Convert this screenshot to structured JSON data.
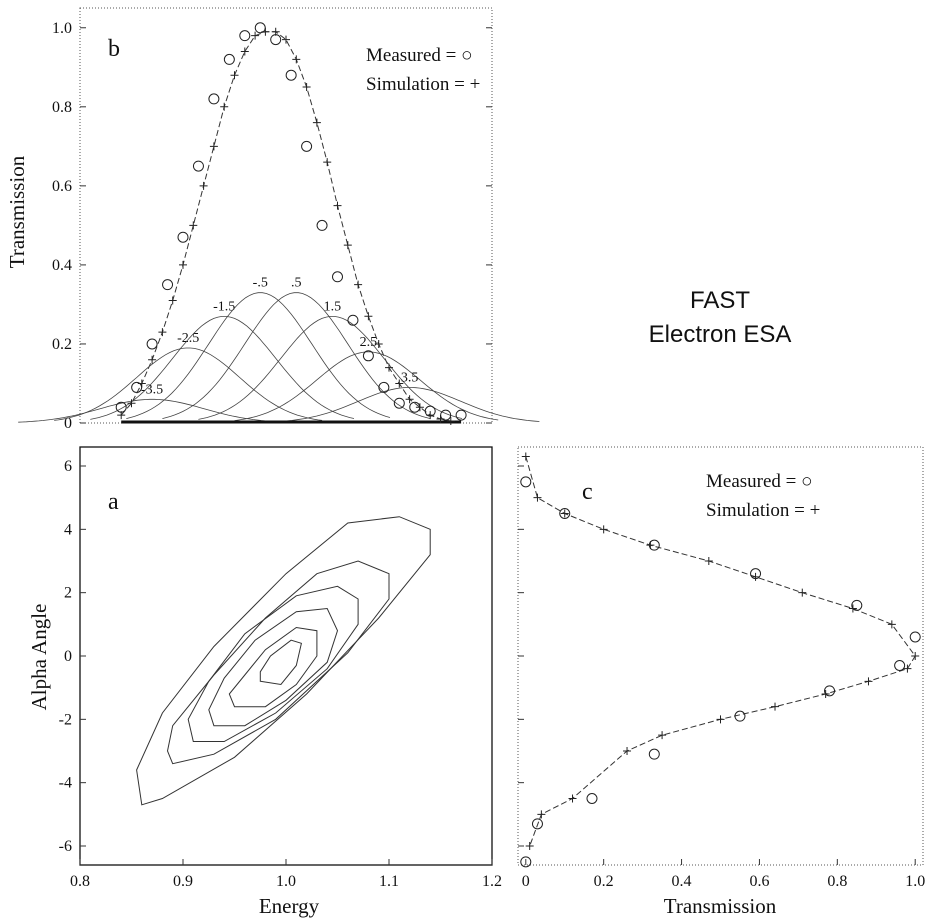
{
  "side_title": {
    "line1": "FAST",
    "line2": "Electron ESA"
  },
  "chart_data": [
    {
      "id": "b",
      "type": "line",
      "panel_label": "b",
      "xlabel": "",
      "ylabel": "Transmission",
      "xlim": [
        0.8,
        1.2
      ],
      "ylim": [
        0,
        1.05
      ],
      "yticks": [
        0,
        0.2,
        0.4,
        0.6,
        0.8,
        1.0
      ],
      "ytick_labels": [
        "0",
        "0.2",
        "0.4",
        "0.6",
        "0.8",
        "1.0"
      ],
      "legend": {
        "measured": "Measured  = ○",
        "simulation": "Simulation  =  +"
      },
      "series": [
        {
          "name": "Measured",
          "marker": "circle",
          "x": [
            0.84,
            0.855,
            0.87,
            0.885,
            0.9,
            0.915,
            0.93,
            0.945,
            0.96,
            0.975,
            0.99,
            1.005,
            1.02,
            1.035,
            1.05,
            1.065,
            1.08,
            1.095,
            1.11,
            1.125,
            1.14,
            1.155,
            1.17
          ],
          "y": [
            0.04,
            0.09,
            0.2,
            0.35,
            0.47,
            0.65,
            0.82,
            0.92,
            0.98,
            1.0,
            0.97,
            0.88,
            0.7,
            0.5,
            0.37,
            0.26,
            0.17,
            0.09,
            0.05,
            0.04,
            0.03,
            0.02,
            0.02
          ]
        },
        {
          "name": "Simulation",
          "marker": "plus",
          "x": [
            0.84,
            0.85,
            0.86,
            0.87,
            0.88,
            0.89,
            0.9,
            0.91,
            0.92,
            0.93,
            0.94,
            0.95,
            0.96,
            0.97,
            0.98,
            0.99,
            1.0,
            1.01,
            1.02,
            1.03,
            1.04,
            1.05,
            1.06,
            1.07,
            1.08,
            1.09,
            1.1,
            1.11,
            1.12,
            1.13,
            1.14,
            1.15,
            1.16
          ],
          "y": [
            0.02,
            0.05,
            0.1,
            0.16,
            0.23,
            0.31,
            0.4,
            0.5,
            0.6,
            0.7,
            0.8,
            0.88,
            0.94,
            0.98,
            0.99,
            0.99,
            0.97,
            0.92,
            0.85,
            0.76,
            0.66,
            0.55,
            0.45,
            0.35,
            0.27,
            0.2,
            0.14,
            0.1,
            0.06,
            0.04,
            0.02,
            0.01,
            0.005
          ]
        },
        {
          "name": "-3.5",
          "peak_x": 0.87,
          "peak_y": 0.06
        },
        {
          "name": "-2.5",
          "peak_x": 0.905,
          "peak_y": 0.19
        },
        {
          "name": "-1.5",
          "peak_x": 0.94,
          "peak_y": 0.27
        },
        {
          "name": "-.5",
          "peak_x": 0.975,
          "peak_y": 0.33
        },
        {
          "name": ".5",
          "peak_x": 1.01,
          "peak_y": 0.33
        },
        {
          "name": "1.5",
          "peak_x": 1.045,
          "peak_y": 0.27
        },
        {
          "name": "2.5",
          "peak_x": 1.08,
          "peak_y": 0.18
        },
        {
          "name": "3.5",
          "peak_x": 1.12,
          "peak_y": 0.09
        }
      ]
    },
    {
      "id": "a",
      "type": "line",
      "panel_label": "a",
      "xlabel": "Energy",
      "ylabel": "Alpha Angle",
      "xlim": [
        0.8,
        1.2
      ],
      "ylim": [
        -6.6,
        6.6
      ],
      "xticks": [
        0.8,
        0.9,
        1.0,
        1.1,
        1.2
      ],
      "xtick_labels": [
        "0.8",
        "0.9",
        "1.0",
        "1.1",
        "1.2"
      ],
      "yticks": [
        -6,
        -4,
        -2,
        0,
        2,
        4,
        6
      ],
      "ytick_labels": [
        "-6",
        "-4",
        "-2",
        "0",
        "2",
        "4",
        "6"
      ],
      "contours": [
        [
          [
            0.86,
            -4.7
          ],
          [
            0.88,
            -4.5
          ],
          [
            0.95,
            -3.2
          ],
          [
            1.02,
            -1.2
          ],
          [
            1.09,
            1.2
          ],
          [
            1.14,
            3.2
          ],
          [
            1.14,
            4.0
          ],
          [
            1.11,
            4.4
          ],
          [
            1.06,
            4.2
          ],
          [
            1.0,
            2.6
          ],
          [
            0.93,
            0.3
          ],
          [
            0.88,
            -1.8
          ],
          [
            0.855,
            -3.6
          ],
          [
            0.86,
            -4.7
          ]
        ],
        [
          [
            0.89,
            -3.4
          ],
          [
            0.93,
            -3.1
          ],
          [
            0.99,
            -2.0
          ],
          [
            1.06,
            0.1
          ],
          [
            1.1,
            1.8
          ],
          [
            1.1,
            2.6
          ],
          [
            1.07,
            3.0
          ],
          [
            1.03,
            2.6
          ],
          [
            0.98,
            1.2
          ],
          [
            0.93,
            -0.6
          ],
          [
            0.89,
            -2.2
          ],
          [
            0.885,
            -3.0
          ],
          [
            0.89,
            -3.4
          ]
        ],
        [
          [
            0.91,
            -2.7
          ],
          [
            0.94,
            -2.7
          ],
          [
            0.99,
            -1.8
          ],
          [
            1.04,
            -0.4
          ],
          [
            1.07,
            1.0
          ],
          [
            1.07,
            1.8
          ],
          [
            1.05,
            2.2
          ],
          [
            1.01,
            1.9
          ],
          [
            0.96,
            0.7
          ],
          [
            0.925,
            -0.8
          ],
          [
            0.905,
            -2.0
          ],
          [
            0.91,
            -2.7
          ]
        ],
        [
          [
            0.93,
            -2.2
          ],
          [
            0.96,
            -2.2
          ],
          [
            1.0,
            -1.4
          ],
          [
            1.04,
            -0.2
          ],
          [
            1.05,
            0.8
          ],
          [
            1.04,
            1.5
          ],
          [
            1.01,
            1.4
          ],
          [
            0.97,
            0.5
          ],
          [
            0.94,
            -0.7
          ],
          [
            0.925,
            -1.7
          ],
          [
            0.93,
            -2.2
          ]
        ],
        [
          [
            0.95,
            -1.6
          ],
          [
            0.98,
            -1.6
          ],
          [
            1.01,
            -0.9
          ],
          [
            1.03,
            0.0
          ],
          [
            1.03,
            0.8
          ],
          [
            1.01,
            0.9
          ],
          [
            0.98,
            0.2
          ],
          [
            0.96,
            -0.6
          ],
          [
            0.945,
            -1.2
          ],
          [
            0.95,
            -1.6
          ]
        ],
        [
          [
            0.975,
            -0.8
          ],
          [
            0.995,
            -0.9
          ],
          [
            1.01,
            -0.3
          ],
          [
            1.015,
            0.4
          ],
          [
            1.005,
            0.5
          ],
          [
            0.985,
            0.0
          ],
          [
            0.975,
            -0.5
          ],
          [
            0.975,
            -0.8
          ]
        ]
      ]
    },
    {
      "id": "c",
      "type": "line",
      "panel_label": "c",
      "xlabel": "Transmission",
      "ylabel": "",
      "xlim": [
        -0.02,
        1.02
      ],
      "ylim": [
        -6.6,
        6.6
      ],
      "xticks": [
        0,
        0.2,
        0.4,
        0.6,
        0.8,
        1.0
      ],
      "xtick_labels": [
        "0",
        "0.2",
        "0.4",
        "0.6",
        "0.8",
        "1.0"
      ],
      "legend": {
        "measured": "Measured  = ○",
        "simulation": "Simulation  =  +"
      },
      "series": [
        {
          "name": "Measured",
          "marker": "circle",
          "x": [
            0.0,
            0.1,
            0.33,
            0.59,
            0.85,
            1.0,
            0.96,
            0.78,
            0.55,
            0.33,
            0.17,
            0.03,
            0.0
          ],
          "y": [
            5.5,
            4.5,
            3.5,
            2.6,
            1.6,
            0.6,
            -0.3,
            -1.1,
            -1.9,
            -3.1,
            -4.5,
            -5.3,
            -6.5
          ]
        },
        {
          "name": "Simulation",
          "marker": "plus",
          "x": [
            0.0,
            0.03,
            0.1,
            0.2,
            0.32,
            0.47,
            0.59,
            0.71,
            0.84,
            0.94,
            1.0,
            0.98,
            0.88,
            0.77,
            0.64,
            0.5,
            0.35,
            0.26,
            0.12,
            0.04,
            0.01
          ],
          "y": [
            6.3,
            5.0,
            4.5,
            4.0,
            3.5,
            3.0,
            2.5,
            2.0,
            1.5,
            1.0,
            0.0,
            -0.4,
            -0.8,
            -1.2,
            -1.6,
            -2.0,
            -2.5,
            -3.0,
            -4.5,
            -5.0,
            -6.0
          ]
        }
      ]
    }
  ]
}
